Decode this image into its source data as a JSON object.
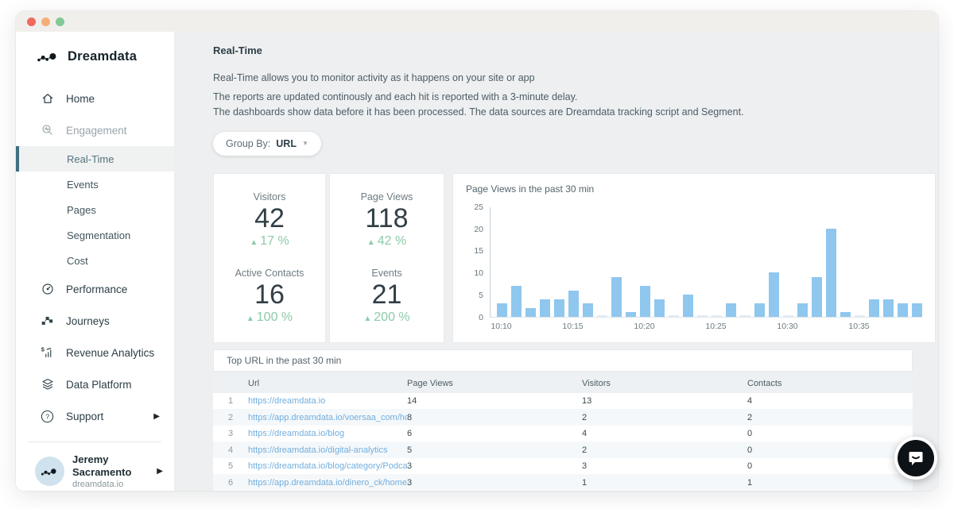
{
  "sidebar": {
    "brand": "Dreamdata",
    "home": "Home",
    "engagement": "Engagement",
    "subnav": [
      "Real-Time",
      "Events",
      "Pages",
      "Segmentation",
      "Cost"
    ],
    "performance": "Performance",
    "journeys": "Journeys",
    "revenue": "Revenue Analytics",
    "data_platform": "Data Platform",
    "support": "Support",
    "user": {
      "name": "Jeremy Sacramento",
      "org": "dreamdata.io"
    }
  },
  "header": {
    "title": "Real-Time",
    "desc1": "Real-Time allows you to monitor activity as it happens on your site or app",
    "desc2": "The reports are updated continously and each hit is reported with a 3-minute delay.",
    "desc3": "The dashboards show data before it has been processed. The data sources are Dreamdata tracking script and Segment."
  },
  "group_by": {
    "label": "Group By:",
    "value": "URL"
  },
  "stats": {
    "visitors": {
      "label": "Visitors",
      "value": "42",
      "delta": "17 %"
    },
    "active_contacts": {
      "label": "Active Contacts",
      "value": "16",
      "delta": "100 %"
    },
    "page_views": {
      "label": "Page Views",
      "value": "118",
      "delta": "42 %"
    },
    "events": {
      "label": "Events",
      "value": "21",
      "delta": "200 %"
    }
  },
  "chart_data": {
    "type": "bar",
    "title": "Page Views in the past 30 min",
    "values": [
      3,
      7,
      2,
      4,
      4,
      6,
      3,
      0,
      9,
      1,
      7,
      4,
      0,
      5,
      0,
      0,
      3,
      0,
      3,
      10,
      0,
      3,
      9,
      20,
      1,
      0,
      4,
      4,
      3,
      3
    ],
    "x_tick_labels": [
      "10:10",
      "10:15",
      "10:20",
      "10:25",
      "10:30",
      "10:35"
    ],
    "x_tick_interval": 5,
    "y_ticks": [
      0,
      5,
      10,
      15,
      20,
      25
    ],
    "ylim": [
      0,
      25
    ],
    "grid": false,
    "bar_color": "#8fc7ee"
  },
  "table": {
    "title": "Top URL in the past 30 min",
    "columns": [
      "Url",
      "Page Views",
      "Visitors",
      "Contacts"
    ],
    "rows": [
      {
        "rank": "1",
        "url": "https://dreamdata.io",
        "page_views": "14",
        "visitors": "13",
        "contacts": "4"
      },
      {
        "rank": "2",
        "url": "https://app.dreamdata.io/voersaa_com/home",
        "page_views": "8",
        "visitors": "2",
        "contacts": "2"
      },
      {
        "rank": "3",
        "url": "https://dreamdata.io/blog",
        "page_views": "6",
        "visitors": "4",
        "contacts": "0"
      },
      {
        "rank": "4",
        "url": "https://dreamdata.io/digital-analytics",
        "page_views": "5",
        "visitors": "2",
        "contacts": "0"
      },
      {
        "rank": "5",
        "url": "https://dreamdata.io/blog/category/Podcasts",
        "page_views": "3",
        "visitors": "3",
        "contacts": "0"
      },
      {
        "rank": "6",
        "url": "https://app.dreamdata.io/dinero_ck/home",
        "page_views": "3",
        "visitors": "1",
        "contacts": "1"
      }
    ]
  },
  "colors": {
    "accent_teal": "#40707f",
    "positive_green": "#8ccba8",
    "bar_blue": "#8fc7ee",
    "link_blue": "#72aedd"
  }
}
